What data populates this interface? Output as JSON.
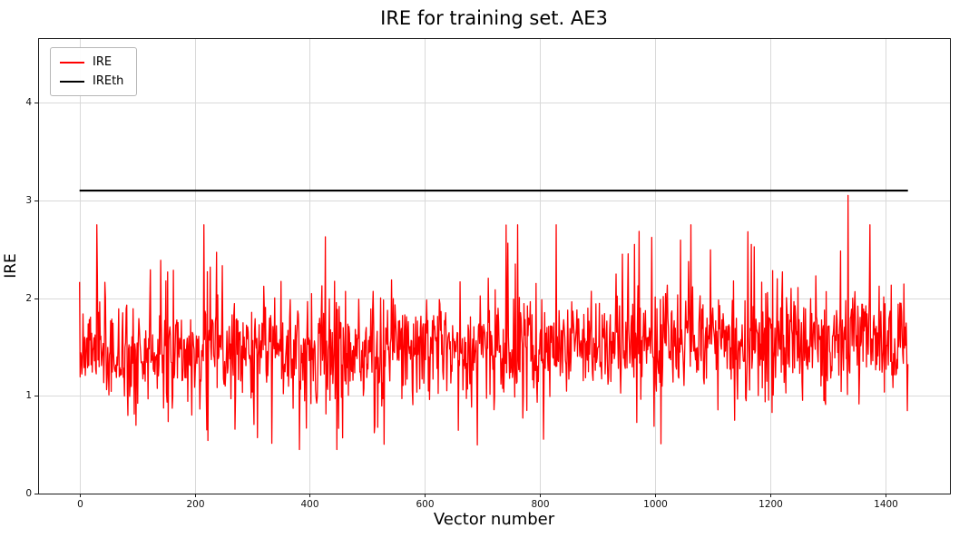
{
  "chart_data": {
    "type": "line",
    "title": "IRE for training set. AE3",
    "xlabel": "Vector number",
    "ylabel": "IRE",
    "xlim": [
      -72,
      1512
    ],
    "ylim": [
      0,
      4.66
    ],
    "xticks": [
      0,
      200,
      400,
      600,
      800,
      1000,
      1200,
      1400
    ],
    "yticks": [
      0,
      1,
      2,
      3,
      4
    ],
    "grid": true,
    "grid_color": "#d9d9d9",
    "spine_color": "#1a1a1a",
    "tick_label_color": "#111111",
    "legend": {
      "position": "upper-left",
      "entries": [
        {
          "label": "IRE",
          "color": "#ff0000"
        },
        {
          "label": "IREth",
          "color": "#000000"
        }
      ]
    },
    "series": [
      {
        "name": "IRE",
        "type": "noisy-line",
        "color": "#ff0000",
        "line_width": 1.3,
        "n_points": 1440,
        "x_start": 0,
        "x_end": 1439,
        "stats": {
          "mean": 1.5,
          "std": 0.27,
          "min": 0.45,
          "max_typical": 2.75
        },
        "baseline_start": 1.42,
        "baseline_end": 1.6,
        "early_dip_region_fraction": 0.35,
        "spike_probability": 0.025,
        "dip_probability_early": 0.055,
        "dip_probability_late": 0.02,
        "peak": {
          "x": 1335,
          "y": 3.05
        },
        "seed": 7
      },
      {
        "name": "IREth",
        "type": "constant",
        "color": "#000000",
        "line_width": 2.2,
        "value": 3.1,
        "x_start": 0,
        "x_end": 1439
      }
    ]
  }
}
